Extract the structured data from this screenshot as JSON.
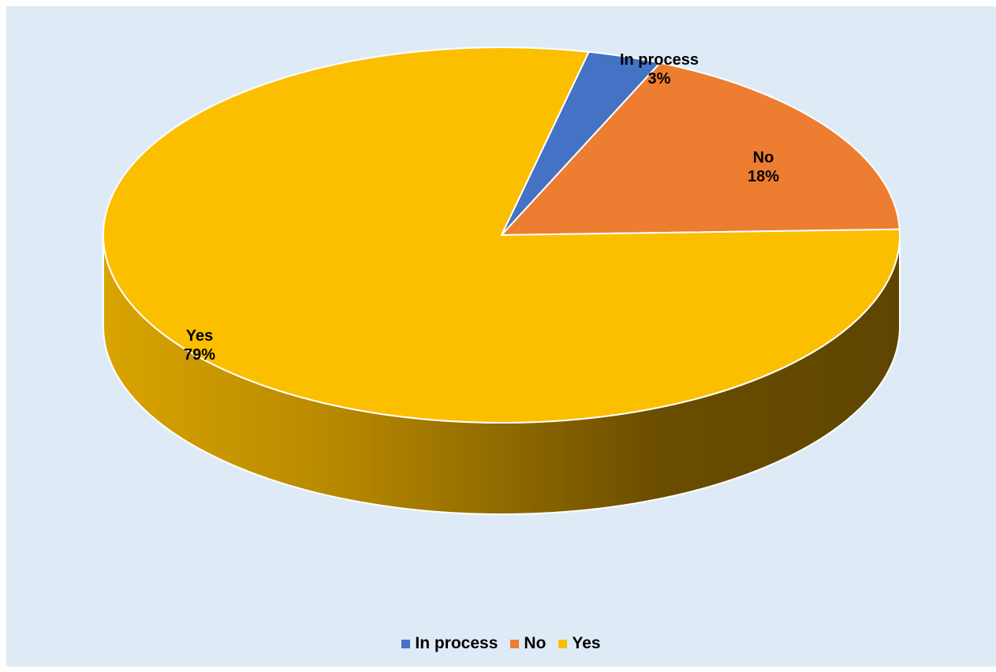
{
  "chart_data": {
    "type": "pie",
    "style": "3d",
    "categories": [
      "In process",
      "No",
      "Yes"
    ],
    "values": [
      3,
      18,
      79
    ],
    "value_format": "percent",
    "colors": [
      "#4472c4",
      "#ed7d31",
      "#fbbf00"
    ],
    "labels": [
      {
        "name": "In process",
        "value": "3%"
      },
      {
        "name": "No",
        "value": "18%"
      },
      {
        "name": "Yes",
        "value": "79%"
      }
    ],
    "legend_position": "bottom",
    "background": "#deebf7"
  },
  "legend": {
    "items": [
      {
        "label": "In process",
        "color": "#4472c4"
      },
      {
        "label": "No",
        "color": "#ed7d31"
      },
      {
        "label": "Yes",
        "color": "#fbbf00"
      }
    ]
  }
}
